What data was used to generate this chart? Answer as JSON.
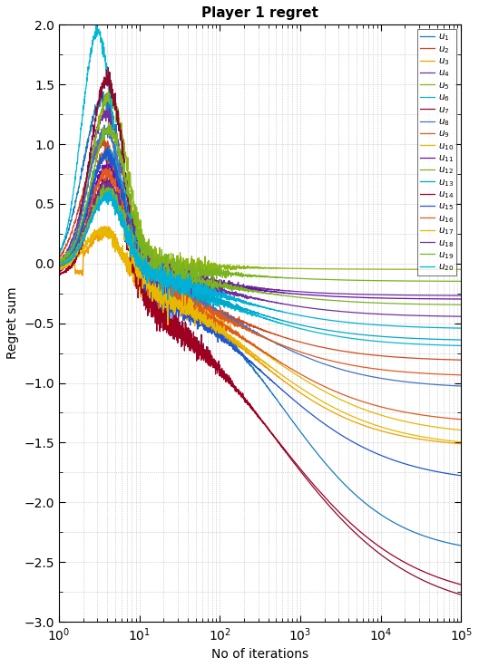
{
  "title": "Player 1 regret",
  "xlabel": "No of iterations",
  "ylabel": "Regret sum",
  "ylim": [
    -3,
    2
  ],
  "colors": [
    "#1a7abf",
    "#d44a1a",
    "#f0a000",
    "#7030a0",
    "#8db613",
    "#00b8d4",
    "#8b0a30",
    "#4472c4",
    "#e05a1e",
    "#e8b800",
    "#6a0dad",
    "#7ab320",
    "#00a8cc",
    "#a00020",
    "#2255cc",
    "#e05a1e",
    "#e8b800",
    "#7030a0",
    "#7ab320",
    "#00b0d8"
  ],
  "n_points": 2000,
  "seed": 42
}
